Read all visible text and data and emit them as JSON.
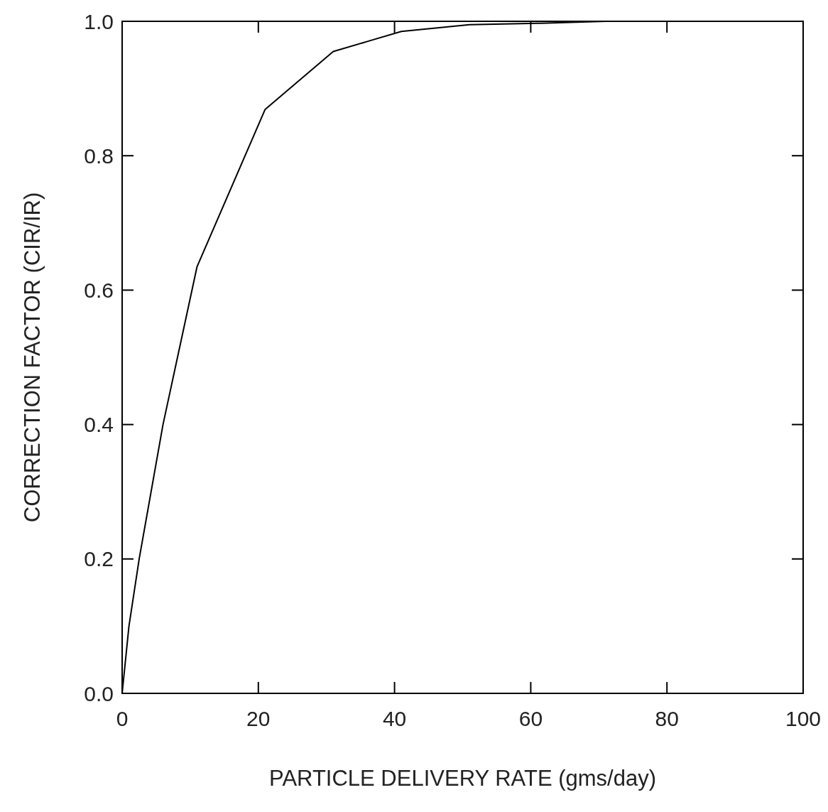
{
  "chart_data": {
    "type": "line",
    "xlabel": "PARTICLE DELIVERY RATE (gms/day)",
    "ylabel": "CORRECTION FACTOR (CIR/IR)",
    "xlim": [
      0,
      100
    ],
    "ylim": [
      0,
      1
    ],
    "xticks": [
      0,
      20,
      40,
      60,
      80,
      100
    ],
    "yticks": [
      {
        "value": 0,
        "label": "0.0"
      },
      {
        "value": 0.2,
        "label": "0.2"
      },
      {
        "value": 0.4,
        "label": "0.4"
      },
      {
        "value": 0.6,
        "label": "0.6"
      },
      {
        "value": 0.8,
        "label": "0.8"
      },
      {
        "value": 1,
        "label": "1.0"
      }
    ],
    "grid": false,
    "marker": "none",
    "line_style": "solid",
    "series": [
      {
        "color": "#000000",
        "x": [
          0,
          1,
          2.5,
          6,
          11,
          21,
          31,
          36,
          41,
          51,
          61,
          71,
          100
        ],
        "values": [
          0,
          0.1,
          0.2,
          0.4,
          0.635,
          0.869,
          0.955,
          0.97,
          0.985,
          0.995,
          0.997,
          1.0,
          1.0
        ]
      }
    ]
  }
}
